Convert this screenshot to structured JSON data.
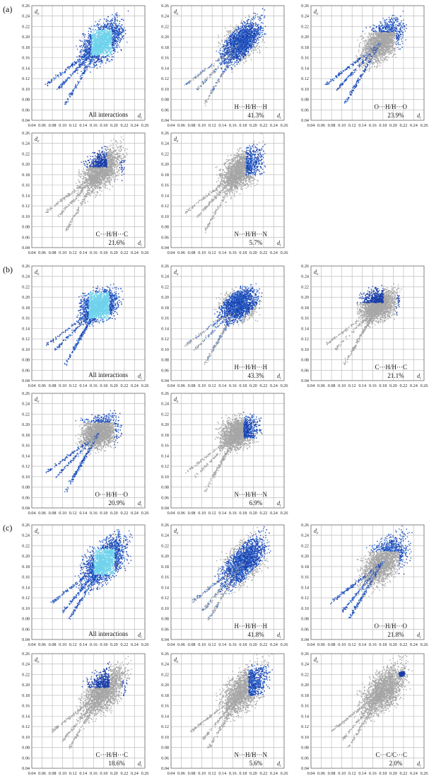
{
  "figure": {
    "sections": [
      {
        "label": "(a)"
      },
      {
        "label": "(b)"
      },
      {
        "label": "(c)"
      }
    ],
    "colors": {
      "grey_cloud": "#a6a6a6",
      "blue_dense": "#1b3fa8",
      "blue_mid": "#2c6bd8",
      "cyan_hot": "#6fd3ec",
      "grid": "#b5b5b5",
      "frame": "#6e6e6e"
    },
    "axis_symbols": {
      "x": "d",
      "x_sub": "i",
      "y": "d",
      "y_sub": "e"
    }
  },
  "chart_data": [
    {
      "type": "scatter",
      "section": "(a)",
      "label": "All interactions",
      "percent": "",
      "highlight": "full",
      "x_ticks": [
        "0.04",
        "0.06",
        "0.08",
        "0.10",
        "0.12",
        "0.14",
        "0.16",
        "0.18",
        "0.20",
        "0.22",
        "0.24",
        "0.26"
      ],
      "y_ticks": [
        "0.04",
        "0.06",
        "0.08",
        "0.10",
        "0.12",
        "0.14",
        "0.16",
        "0.18",
        "0.20",
        "0.22",
        "0.24",
        "0.26"
      ],
      "xlim": [
        0.04,
        0.26
      ],
      "ylim": [
        0.04,
        0.26
      ],
      "grid": true
    },
    {
      "type": "scatter",
      "section": "(a)",
      "label": "H···H/H···H",
      "percent": "41.3%",
      "highlight": "hh",
      "x_ticks": [
        "0.04",
        "0.06",
        "0.08",
        "0.10",
        "0.12",
        "0.14",
        "0.16",
        "0.18",
        "0.20",
        "0.22",
        "0.24",
        "0.26"
      ],
      "y_ticks": [
        "0.04",
        "0.06",
        "0.08",
        "0.10",
        "0.12",
        "0.14",
        "0.16",
        "0.18",
        "0.20",
        "0.22",
        "0.24",
        "0.26"
      ],
      "xlim": [
        0.04,
        0.26
      ],
      "ylim": [
        0.04,
        0.26
      ],
      "grid": true
    },
    {
      "type": "scatter",
      "section": "(a)",
      "label": "O···H/H···O",
      "percent": "23.9%",
      "highlight": "oh",
      "x_ticks": [
        "0.04",
        "0.06",
        "0.08",
        "0.10",
        "0.12",
        "0.14",
        "0.16",
        "0.18",
        "0.20",
        "0.22",
        "0.24",
        "0.26"
      ],
      "y_ticks": [
        "0.04",
        "0.06",
        "0.08",
        "0.10",
        "0.12",
        "0.14",
        "0.16",
        "0.18",
        "0.20",
        "0.22",
        "0.24",
        "0.26"
      ],
      "xlim": [
        0.04,
        0.26
      ],
      "ylim": [
        0.04,
        0.26
      ],
      "grid": true
    },
    {
      "type": "scatter",
      "section": "(a)",
      "label": "C···H/H···C",
      "percent": "21.6%",
      "highlight": "ch",
      "x_ticks": [
        "0.04",
        "0.06",
        "0.08",
        "0.10",
        "0.12",
        "0.14",
        "0.16",
        "0.18",
        "0.20",
        "0.22",
        "0.24",
        "0.26"
      ],
      "y_ticks": [
        "0.04",
        "0.06",
        "0.08",
        "0.10",
        "0.12",
        "0.14",
        "0.16",
        "0.18",
        "0.20",
        "0.22",
        "0.24",
        "0.26"
      ],
      "xlim": [
        0.04,
        0.26
      ],
      "ylim": [
        0.04,
        0.26
      ],
      "grid": true
    },
    {
      "type": "scatter",
      "section": "(a)",
      "label": "N···H/H···N",
      "percent": "5.7%",
      "highlight": "nh",
      "x_ticks": [
        "0.04",
        "0.06",
        "0.08",
        "0.10",
        "0.12",
        "0.14",
        "0.16",
        "0.18",
        "0.20",
        "0.22",
        "0.24",
        "0.26"
      ],
      "y_ticks": [
        "0.04",
        "0.06",
        "0.08",
        "0.10",
        "0.12",
        "0.14",
        "0.16",
        "0.18",
        "0.20",
        "0.22",
        "0.24",
        "0.26"
      ],
      "xlim": [
        0.04,
        0.26
      ],
      "ylim": [
        0.04,
        0.26
      ],
      "grid": true
    },
    {
      "type": "scatter",
      "section": "(b)",
      "label": "All interactions",
      "percent": "",
      "highlight": "full",
      "x_ticks": [
        "0.04",
        "0.06",
        "0.08",
        "0.10",
        "0.12",
        "0.14",
        "0.16",
        "0.18",
        "0.20",
        "0.22",
        "0.24",
        "0.26"
      ],
      "y_ticks": [
        "0.04",
        "0.06",
        "0.08",
        "0.10",
        "0.12",
        "0.14",
        "0.16",
        "0.18",
        "0.20",
        "0.22",
        "0.24",
        "0.26"
      ],
      "xlim": [
        0.04,
        0.26
      ],
      "ylim": [
        0.04,
        0.26
      ],
      "grid": true
    },
    {
      "type": "scatter",
      "section": "(b)",
      "label": "H···H/H···H",
      "percent": "43.3%",
      "highlight": "hh",
      "x_ticks": [
        "0.04",
        "0.06",
        "0.08",
        "0.10",
        "0.12",
        "0.14",
        "0.16",
        "0.18",
        "0.20",
        "0.22",
        "0.24",
        "0.26"
      ],
      "y_ticks": [
        "0.04",
        "0.06",
        "0.08",
        "0.10",
        "0.12",
        "0.14",
        "0.16",
        "0.18",
        "0.20",
        "0.22",
        "0.24",
        "0.26"
      ],
      "xlim": [
        0.04,
        0.26
      ],
      "ylim": [
        0.04,
        0.26
      ],
      "grid": true
    },
    {
      "type": "scatter",
      "section": "(b)",
      "label": "C···H/H···C",
      "percent": "21.1%",
      "highlight": "ch",
      "x_ticks": [
        "0.04",
        "0.06",
        "0.08",
        "0.10",
        "0.12",
        "0.14",
        "0.16",
        "0.18",
        "0.20",
        "0.22",
        "0.24",
        "0.26"
      ],
      "y_ticks": [
        "0.04",
        "0.06",
        "0.08",
        "0.10",
        "0.12",
        "0.14",
        "0.16",
        "0.18",
        "0.20",
        "0.22",
        "0.24",
        "0.26"
      ],
      "xlim": [
        0.04,
        0.26
      ],
      "ylim": [
        0.04,
        0.26
      ],
      "grid": true
    },
    {
      "type": "scatter",
      "section": "(b)",
      "label": "O···H/H···O",
      "percent": "20.9%",
      "highlight": "oh",
      "x_ticks": [
        "0.04",
        "0.06",
        "0.08",
        "0.10",
        "0.12",
        "0.14",
        "0.16",
        "0.18",
        "0.20",
        "0.22",
        "0.24",
        "0.26"
      ],
      "y_ticks": [
        "0.04",
        "0.06",
        "0.08",
        "0.10",
        "0.12",
        "0.14",
        "0.16",
        "0.18",
        "0.20",
        "0.22",
        "0.24",
        "0.26"
      ],
      "xlim": [
        0.04,
        0.26
      ],
      "ylim": [
        0.04,
        0.26
      ],
      "grid": true
    },
    {
      "type": "scatter",
      "section": "(b)",
      "label": "N···H/H···N",
      "percent": "6.9%",
      "highlight": "nh",
      "x_ticks": [
        "0.04",
        "0.06",
        "0.08",
        "0.10",
        "0.12",
        "0.14",
        "0.16",
        "0.18",
        "0.20",
        "0.22",
        "0.24",
        "0.26"
      ],
      "y_ticks": [
        "0.04",
        "0.06",
        "0.08",
        "0.10",
        "0.12",
        "0.14",
        "0.16",
        "0.18",
        "0.20",
        "0.22",
        "0.24",
        "0.26"
      ],
      "xlim": [
        0.04,
        0.26
      ],
      "ylim": [
        0.04,
        0.26
      ],
      "grid": true
    },
    {
      "type": "scatter",
      "section": "(c)",
      "label": "All interactions",
      "percent": "",
      "highlight": "full",
      "x_ticks": [
        "0.04",
        "0.06",
        "0.08",
        "0.10",
        "0.12",
        "0.14",
        "0.16",
        "0.18",
        "0.20",
        "0.22",
        "0.24",
        "0.26"
      ],
      "y_ticks": [
        "0.04",
        "0.06",
        "0.08",
        "0.10",
        "0.12",
        "0.14",
        "0.16",
        "0.18",
        "0.20",
        "0.22",
        "0.24",
        "0.26"
      ],
      "xlim": [
        0.04,
        0.26
      ],
      "ylim": [
        0.04,
        0.26
      ],
      "grid": true
    },
    {
      "type": "scatter",
      "section": "(c)",
      "label": "H···H/H···H",
      "percent": "41.8%",
      "highlight": "hh",
      "x_ticks": [
        "0.04",
        "0.06",
        "0.08",
        "0.10",
        "0.12",
        "0.14",
        "0.16",
        "0.18",
        "0.20",
        "0.22",
        "0.24",
        "0.26"
      ],
      "y_ticks": [
        "0.04",
        "0.06",
        "0.08",
        "0.10",
        "0.12",
        "0.14",
        "0.16",
        "0.18",
        "0.20",
        "0.22",
        "0.24",
        "0.26"
      ],
      "xlim": [
        0.04,
        0.26
      ],
      "ylim": [
        0.04,
        0.26
      ],
      "grid": true
    },
    {
      "type": "scatter",
      "section": "(c)",
      "label": "O···H/H···O",
      "percent": "21.8%",
      "highlight": "oh",
      "x_ticks": [
        "0.04",
        "0.06",
        "0.08",
        "0.10",
        "0.12",
        "0.14",
        "0.16",
        "0.18",
        "0.20",
        "0.22",
        "0.24",
        "0.26"
      ],
      "y_ticks": [
        "0.04",
        "0.06",
        "0.08",
        "0.10",
        "0.12",
        "0.14",
        "0.16",
        "0.18",
        "0.20",
        "0.22",
        "0.24",
        "0.26"
      ],
      "xlim": [
        0.04,
        0.26
      ],
      "ylim": [
        0.04,
        0.26
      ],
      "grid": true
    },
    {
      "type": "scatter",
      "section": "(c)",
      "label": "C···H/H···C",
      "percent": "18.6%",
      "highlight": "ch",
      "x_ticks": [
        "0.04",
        "0.06",
        "0.08",
        "0.10",
        "0.12",
        "0.14",
        "0.16",
        "0.18",
        "0.20",
        "0.22",
        "0.24",
        "0.26"
      ],
      "y_ticks": [
        "0.04",
        "0.06",
        "0.08",
        "0.10",
        "0.12",
        "0.14",
        "0.16",
        "0.18",
        "0.20",
        "0.22",
        "0.24",
        "0.26"
      ],
      "xlim": [
        0.04,
        0.26
      ],
      "ylim": [
        0.04,
        0.26
      ],
      "grid": true
    },
    {
      "type": "scatter",
      "section": "(c)",
      "label": "N···H/H···N",
      "percent": "5.6%",
      "highlight": "nh",
      "x_ticks": [
        "0.04",
        "0.06",
        "0.08",
        "0.10",
        "0.12",
        "0.14",
        "0.16",
        "0.18",
        "0.20",
        "0.22",
        "0.24",
        "0.26"
      ],
      "y_ticks": [
        "0.04",
        "0.06",
        "0.08",
        "0.10",
        "0.12",
        "0.14",
        "0.16",
        "0.18",
        "0.20",
        "0.22",
        "0.24",
        "0.26"
      ],
      "xlim": [
        0.04,
        0.26
      ],
      "ylim": [
        0.04,
        0.26
      ],
      "grid": true
    },
    {
      "type": "scatter",
      "section": "(c)",
      "label": "C···C/C···C",
      "percent": "2.0%",
      "highlight": "cc",
      "x_ticks": [
        "0.04",
        "0.06",
        "0.08",
        "0.10",
        "0.12",
        "0.14",
        "0.16",
        "0.18",
        "0.20",
        "0.22",
        "0.24",
        "0.26"
      ],
      "y_ticks": [
        "0.04",
        "0.06",
        "0.08",
        "0.10",
        "0.12",
        "0.14",
        "0.16",
        "0.18",
        "0.20",
        "0.22",
        "0.24",
        "0.26"
      ],
      "xlim": [
        0.04,
        0.26
      ],
      "ylim": [
        0.04,
        0.26
      ],
      "grid": true
    }
  ]
}
